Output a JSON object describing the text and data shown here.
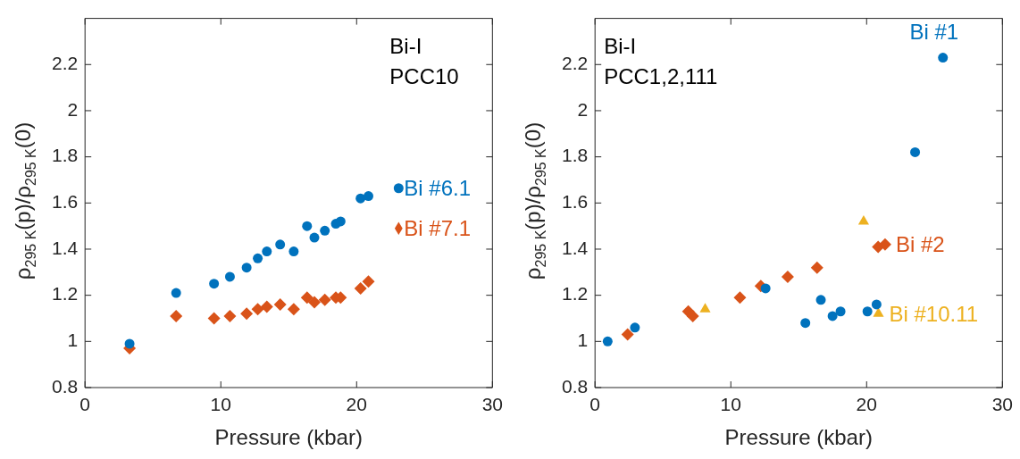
{
  "chart_data": [
    {
      "type": "scatter",
      "xlabel": "Pressure (kbar)",
      "ylabel": "ρ$_{295 K}$(p)/ρ$_{295 K}$(0)",
      "annotations": [
        "Bi-I",
        "PCC10"
      ],
      "xlim": [
        0,
        30
      ],
      "xticks": [
        0,
        10,
        20,
        30
      ],
      "ylim": [
        0.8,
        2.4
      ],
      "yticks": [
        0.8,
        1,
        1.2,
        1.4,
        1.6,
        1.8,
        2,
        2.2
      ],
      "grid": false,
      "legend": "right",
      "series": [
        {
          "name": "Bi #6.1",
          "color": "#0072bd",
          "marker": "circle",
          "x": [
            3.28,
            6.71,
            9.5,
            10.67,
            11.9,
            12.72,
            13.39,
            14.37,
            15.37,
            16.35,
            16.89,
            17.66,
            18.47,
            18.82,
            20.29,
            20.87
          ],
          "values": [
            0.99,
            1.21,
            1.25,
            1.28,
            1.32,
            1.36,
            1.39,
            1.42,
            1.39,
            1.5,
            1.45,
            1.48,
            1.51,
            1.52,
            1.62,
            1.63
          ]
        },
        {
          "name": "Bi #7.1",
          "color": "#d95319",
          "marker": "diamond",
          "x": [
            3.28,
            6.71,
            9.5,
            10.67,
            11.9,
            12.72,
            13.39,
            14.37,
            15.37,
            16.35,
            16.89,
            17.66,
            18.47,
            18.82,
            20.29,
            20.87
          ],
          "values": [
            0.97,
            1.11,
            1.1,
            1.11,
            1.12,
            1.14,
            1.15,
            1.16,
            1.14,
            1.19,
            1.17,
            1.18,
            1.19,
            1.19,
            1.23,
            1.26
          ]
        }
      ]
    },
    {
      "type": "scatter",
      "xlabel": "Pressure (kbar)",
      "ylabel": "ρ$_{295 K}$(p)/ρ$_{295 K}$(0)",
      "annotations": [
        "Bi-I",
        "PCC1,2,111"
      ],
      "xlim": [
        0,
        30
      ],
      "xticks": [
        0,
        10,
        20,
        30
      ],
      "ylim": [
        0.8,
        2.4
      ],
      "yticks": [
        0.8,
        1,
        1.2,
        1.4,
        1.6,
        1.8,
        2,
        2.2
      ],
      "grid": false,
      "series": [
        {
          "name": "Bi #1",
          "color": "#0072bd",
          "marker": "circle",
          "x": [
            0.93,
            2.94,
            12.56,
            15.49,
            16.63,
            17.49,
            18.08,
            20.06,
            20.73,
            23.57,
            25.62
          ],
          "values": [
            1.0,
            1.06,
            1.23,
            1.08,
            1.18,
            1.11,
            1.13,
            1.13,
            1.16,
            1.82,
            2.23
          ]
        },
        {
          "name": "Bi #2",
          "color": "#d95319",
          "marker": "diamond",
          "x": [
            2.4,
            6.87,
            7.2,
            10.67,
            12.21,
            14.19,
            16.35,
            20.85,
            21.36
          ],
          "values": [
            1.03,
            1.13,
            1.11,
            1.19,
            1.24,
            1.28,
            1.32,
            1.41,
            1.42
          ]
        },
        {
          "name": "Bi #10.11",
          "color": "#edb120",
          "marker": "triangle",
          "x": [
            8.11,
            19.78,
            20.87
          ],
          "values": [
            1.14,
            1.52,
            1.12
          ]
        }
      ]
    }
  ]
}
